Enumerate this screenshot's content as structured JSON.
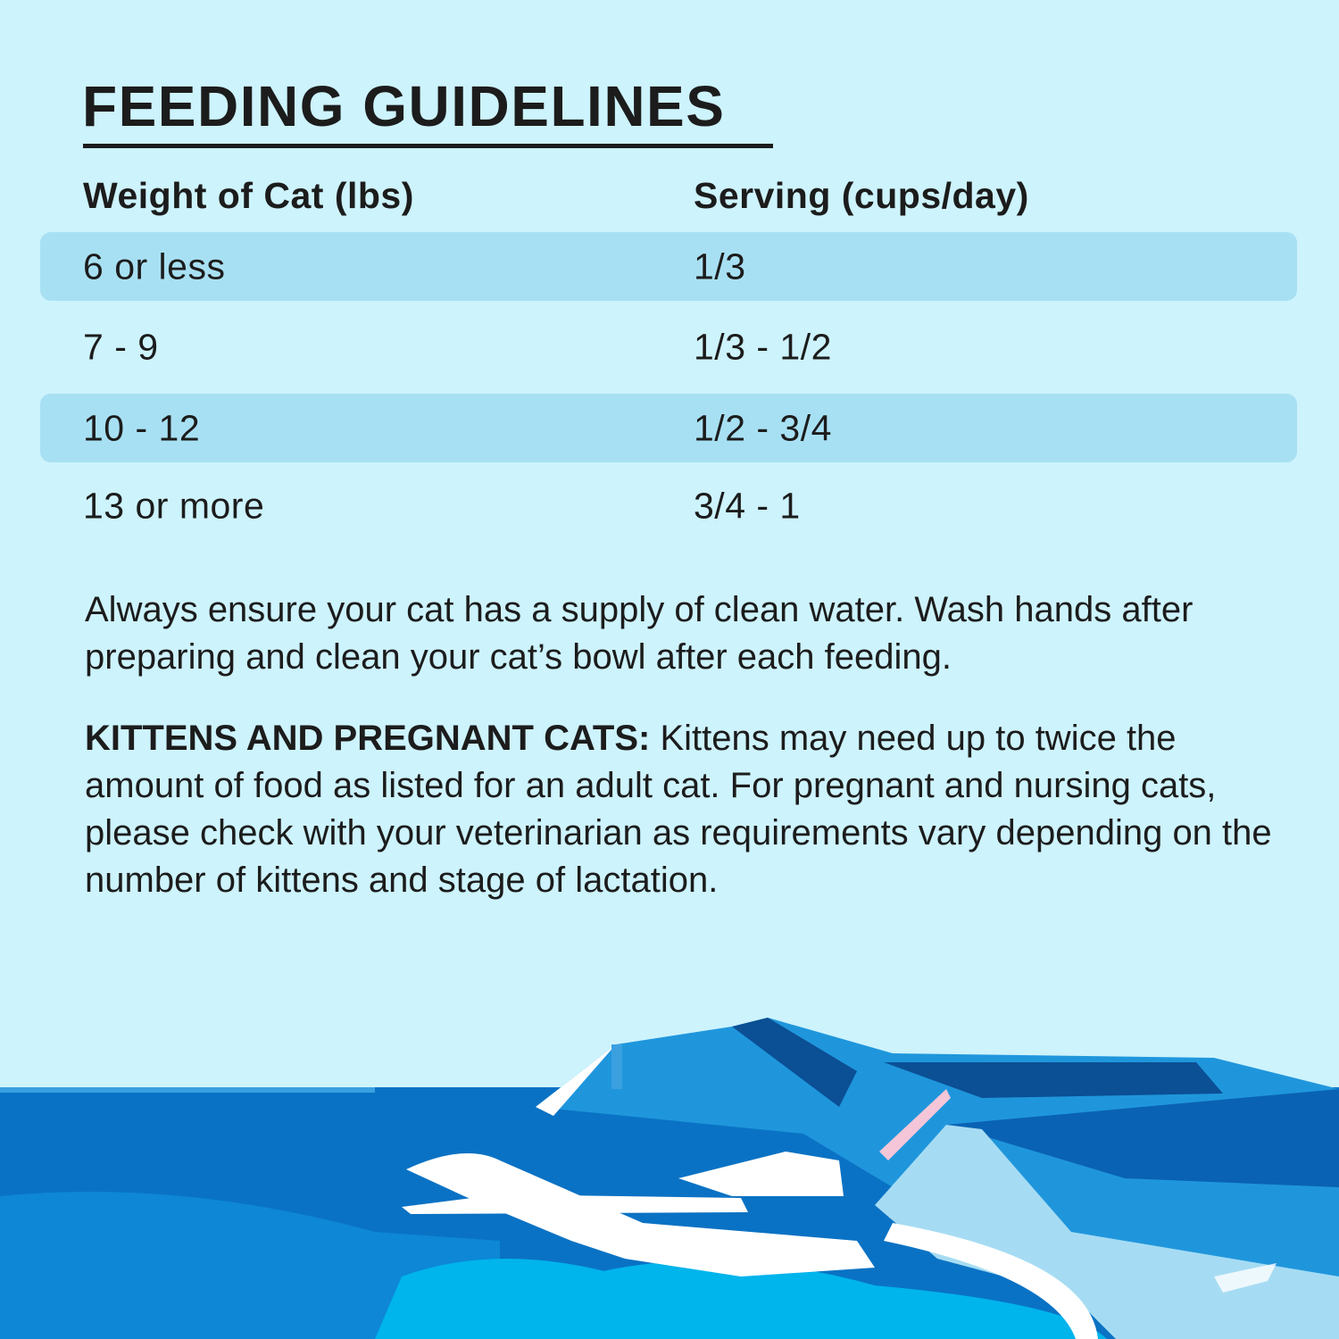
{
  "title": "FEEDING GUIDELINES",
  "table": {
    "headers": [
      "Weight of Cat (lbs)",
      "Serving (cups/day)"
    ],
    "rows": [
      [
        "6 or less",
        "1/3"
      ],
      [
        "7 - 9",
        "1/3 - 1/2"
      ],
      [
        "10 - 12",
        "1/2 - 3/4"
      ],
      [
        "13 or more",
        "3/4 - 1"
      ]
    ]
  },
  "water_note": "Always ensure your cat has a supply of clean water. Wash hands after preparing and clean your cat’s bowl after each feeding.",
  "kittens_note": {
    "label": "KITTENS AND PREGNANT CATS:",
    "text": " Kittens may need up to twice the amount of food as listed for an adult cat. For pregnant and nursing cats, please check with your veterinarian as requirements vary depending on the number of kittens and stage of lactation."
  },
  "colors": {
    "background": "#cdf3fd",
    "row_highlight": "#a8e0f3",
    "sea": "#0a72c4",
    "lagoon": "#00b4ec"
  }
}
